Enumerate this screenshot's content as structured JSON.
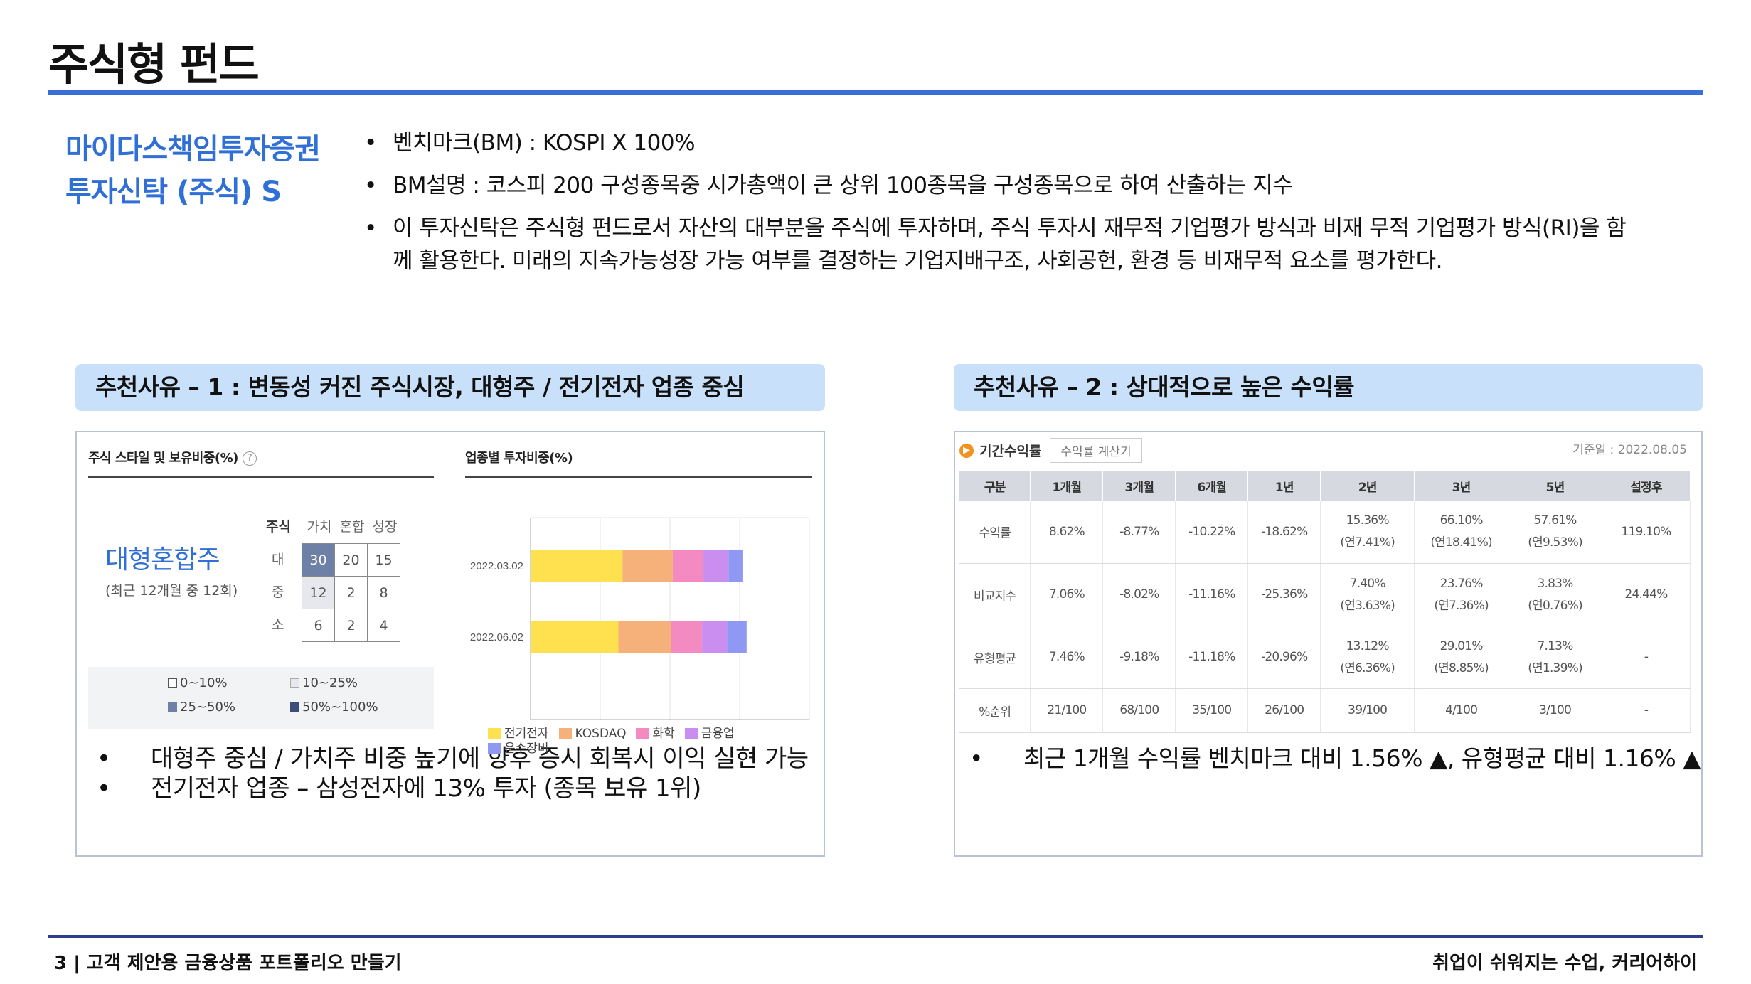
{
  "slide_title": "주식형 펀드",
  "fund_name": [
    "마이다스책임투자증권",
    "투자신탁 (주식) S"
  ],
  "bullets": [
    "벤치마크(BM) : KOSPI X 100%",
    "BM설명 : 코스피 200 구성종목중 시가총액이 큰 상위 100종목을 구성종목으로 하여 산출하는 지수",
    "이 투자신탁은 주식형 펀드로서 자산의 대부분을 주식에 투자하며, 주식 투자시 재무적 기업평가 방식과 비재 무적 기업평가 방식(RI)을 함께 활용한다. 미래의 지속가능성장 가능 여부를 결정하는 기업지배구조, 사회공헌, 환경 등 비재무적 요소를 평가한다."
  ],
  "reason1": {
    "header": "추천사유 – 1 : 변동성 커진 주식시장, 대형주 / 전기전자 업종 중심",
    "style_title": "주식 스타일 및 보유비중(%)",
    "help": "?",
    "style_name": "대형혼합주",
    "style_sub": "(최근 12개월 중 12회)",
    "grid_corner": "주식",
    "grid_cols": [
      "가치",
      "혼합",
      "성장"
    ],
    "grid_rows": [
      "대",
      "중",
      "소"
    ],
    "grid_values": [
      [
        "30",
        "20",
        "15"
      ],
      [
        "12",
        "2",
        "8"
      ],
      [
        "6",
        "2",
        "4"
      ]
    ],
    "legend": [
      "0~10%",
      "10~25%",
      "25~50%",
      "50%~100%"
    ],
    "legend_colors": [
      "#ffffff",
      "#e6e8ee",
      "#6f80a6",
      "#3d4d78"
    ],
    "bullets": [
      "대형주 중심 / 가치주 비중 높기에 향후 증시 회복시 이익 실현 가능",
      "전기전자 업종 – 삼성전자에 13% 투자 (종목 보유 1위)"
    ]
  },
  "reason2": {
    "header": "추천사유 – 2 : 상대적으로 높은 수익률",
    "tab_title": "기간수익률",
    "tab_button": "수익률 계산기",
    "base_date": "기준일 : 2022.08.05",
    "columns": [
      "구분",
      "1개월",
      "3개월",
      "6개월",
      "1년",
      "2년",
      "3년",
      "5년",
      "설정후"
    ],
    "rows": [
      {
        "label": "수익률",
        "cells": [
          "8.62%",
          "-8.77%",
          "-10.22%",
          "-18.62%",
          "15.36%",
          "66.10%",
          "57.61%",
          "119.10%"
        ],
        "subs": [
          "",
          "",
          "",
          "",
          "(연7.41%)",
          "(연18.41%)",
          "(연9.53%)",
          ""
        ]
      },
      {
        "label": "비교지수",
        "cells": [
          "7.06%",
          "-8.02%",
          "-11.16%",
          "-25.36%",
          "7.40%",
          "23.76%",
          "3.83%",
          "24.44%"
        ],
        "subs": [
          "",
          "",
          "",
          "",
          "(연3.63%)",
          "(연7.36%)",
          "(연0.76%)",
          ""
        ]
      },
      {
        "label": "유형평균",
        "cells": [
          "7.46%",
          "-9.18%",
          "-11.18%",
          "-20.96%",
          "13.12%",
          "29.01%",
          "7.13%",
          "-"
        ],
        "subs": [
          "",
          "",
          "",
          "",
          "(연6.36%)",
          "(연8.85%)",
          "(연1.39%)",
          ""
        ]
      },
      {
        "label": "%순위",
        "cells": [
          "21/100",
          "68/100",
          "35/100",
          "26/100",
          "39/100",
          "4/100",
          "3/100",
          "-"
        ],
        "subs": [
          "",
          "",
          "",
          "",
          "",
          "",
          "",
          ""
        ]
      }
    ],
    "bullet": "최근 1개월 수익률 벤치마크 대비 1.56% ▲, 유형평균 대비 1.16% ▲"
  },
  "chart_data": {
    "type": "bar",
    "orientation": "horizontal",
    "stacked": true,
    "title": "업종별 투자비중(%)",
    "categories": [
      "2022.03.02",
      "2022.06.02"
    ],
    "xlim": [
      0,
      100
    ],
    "xticks": [
      "0",
      "25",
      "50",
      "75",
      "100"
    ],
    "grid": true,
    "legend_position": "bottom",
    "series": [
      {
        "name": "전기전자",
        "color": "#ffe150",
        "values": [
          33,
          31.5
        ]
      },
      {
        "name": "KOSDAQ",
        "color": "#f6b07a",
        "values": [
          18,
          19
        ]
      },
      {
        "name": "화학",
        "color": "#f38bc2",
        "values": [
          11,
          11
        ]
      },
      {
        "name": "금융업",
        "color": "#c98ef0",
        "values": [
          9,
          9
        ]
      },
      {
        "name": "운수장비",
        "color": "#8f98f2",
        "values": [
          5,
          7
        ]
      }
    ]
  },
  "footer": {
    "left": "3 | 고객 제안용 금융상품 포트폴리오 만들기",
    "right": "취업이 쉬워지는 수업, 커리어하이"
  },
  "colors": {
    "accent": "#3b6fd8",
    "header_bg": "#c9e0fa",
    "fund_name": "#2f6fd6",
    "footer_rule": "#2d3e8c",
    "positive": "#e45a57",
    "negative": "#4a7fd6"
  }
}
